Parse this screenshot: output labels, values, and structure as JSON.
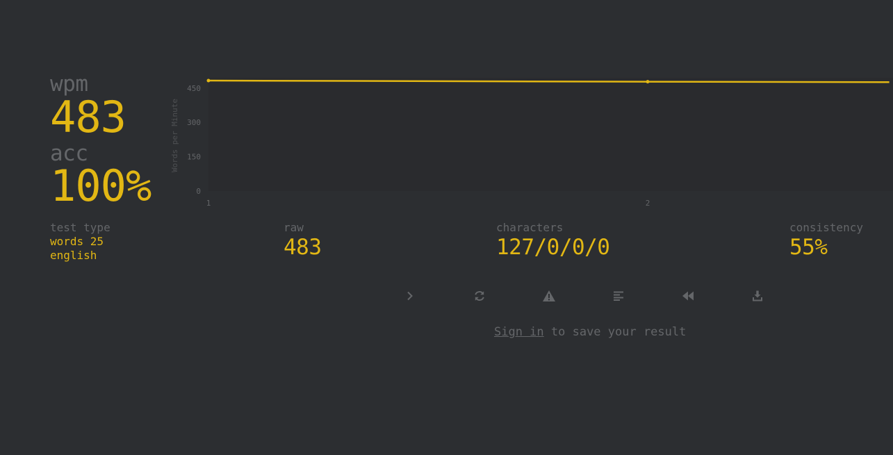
{
  "stats": {
    "wpm_label": "wpm",
    "wpm_value": "483",
    "acc_label": "acc",
    "acc_value": "100%"
  },
  "details": {
    "test_type_label": "test type",
    "test_type_line1": "words 25",
    "test_type_line2": "english",
    "raw_label": "raw",
    "raw_value": "483",
    "characters_label": "characters",
    "characters_value": "127/0/0/0",
    "consistency_label": "consistency",
    "consistency_value": "55%"
  },
  "actions": {
    "next_test_icon": "chevron-right-icon",
    "restart_icon": "refresh-icon",
    "report_icon": "warning-icon",
    "words_history_icon": "align-left-icon",
    "replay_icon": "backward-icon",
    "screenshot_icon": "download-icon"
  },
  "signin": {
    "link_text": "Sign in",
    "rest_text": " to save your result"
  },
  "colors": {
    "background": "#2c2e31",
    "accent": "#e2b714",
    "muted": "#646669"
  },
  "chart_data": {
    "type": "line",
    "ylabel": "Words per Minute",
    "x": [
      1,
      2,
      2.55
    ],
    "series": [
      {
        "values": [
          483,
          478,
          476
        ]
      }
    ],
    "x_ticks": [
      "1",
      "2"
    ],
    "y_ticks": [
      "0",
      "150",
      "300",
      "450"
    ],
    "ylim": [
      0,
      500
    ],
    "grid": false
  }
}
